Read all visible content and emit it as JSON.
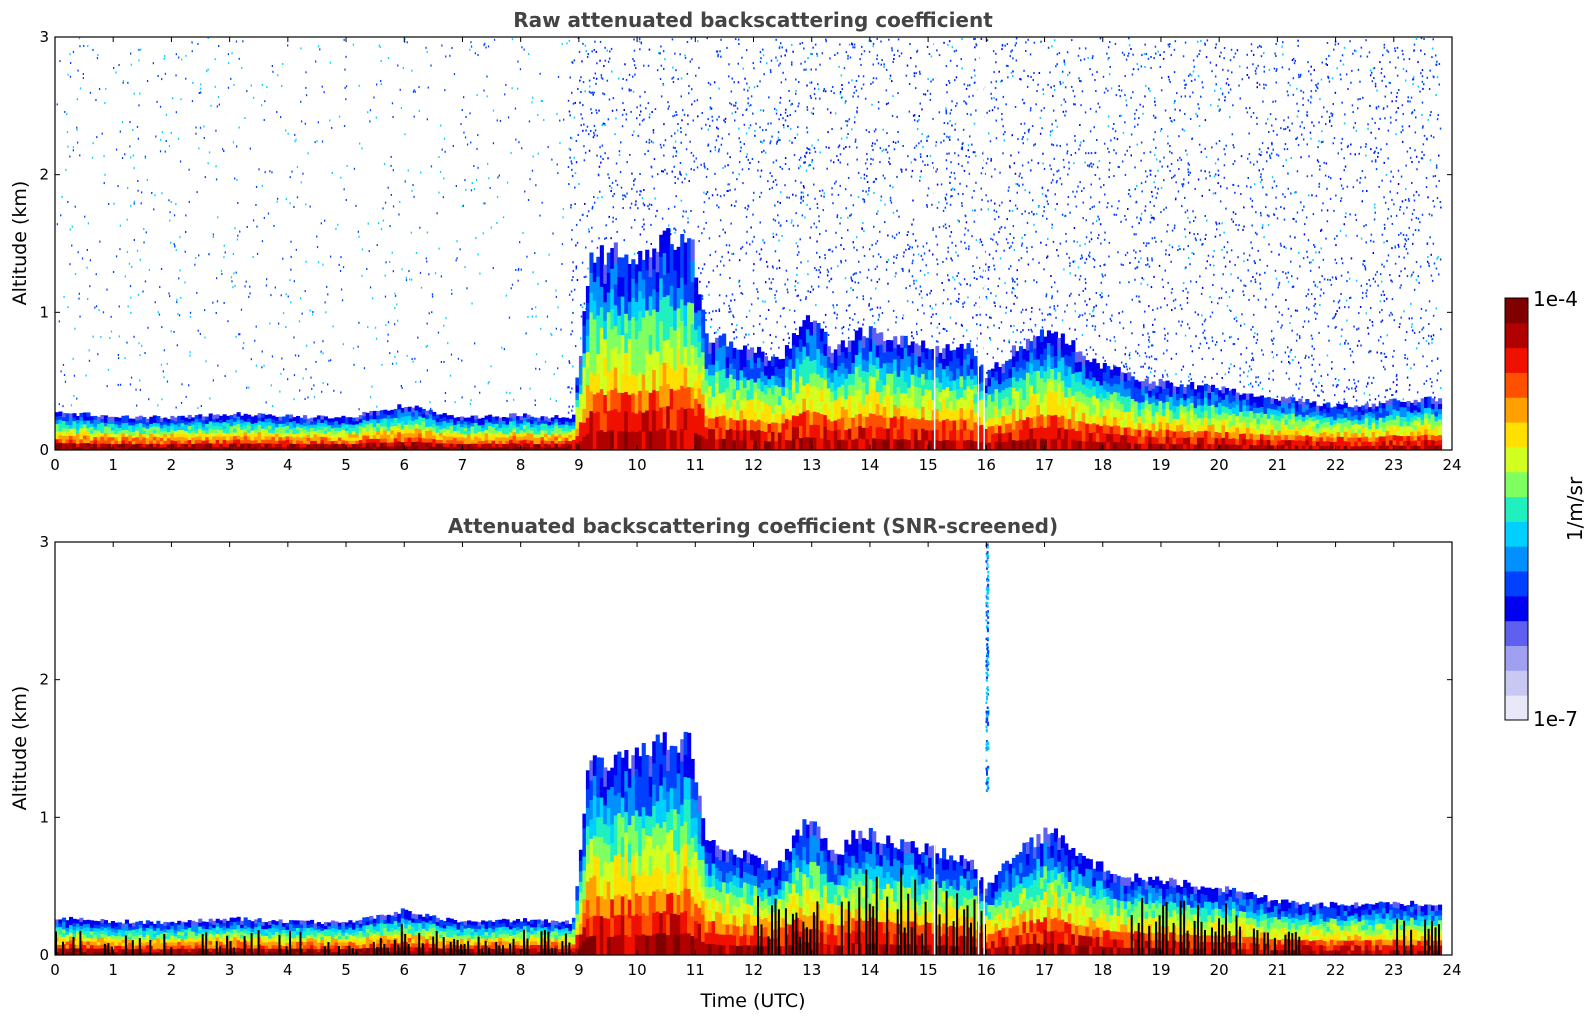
{
  "colorbar": {
    "max_label": "1e-4",
    "min_label": "1e-7",
    "unit_label": "1/m/sr",
    "colors": [
      "#e8e8f8",
      "#c8c8f2",
      "#a0a0f0",
      "#6060f0",
      "#0000f0",
      "#0040ff",
      "#0090ff",
      "#00d0ff",
      "#20f0c0",
      "#80ff60",
      "#d0ff20",
      "#ffe000",
      "#ffa000",
      "#ff5000",
      "#f01000",
      "#b00000",
      "#800000"
    ]
  },
  "chart_data": [
    {
      "type": "heatmap",
      "title": "Raw attenuated backscattering coefficient",
      "xlabel": "",
      "ylabel": "Altitude (km)",
      "xlim": [
        0,
        24
      ],
      "ylim": [
        0,
        3
      ],
      "x_ticks": [
        "0",
        "1",
        "2",
        "3",
        "4",
        "5",
        "6",
        "7",
        "8",
        "9",
        "10",
        "11",
        "12",
        "13",
        "14",
        "15",
        "16",
        "17",
        "18",
        "19",
        "20",
        "21",
        "22",
        "23",
        "24"
      ],
      "y_ticks": [
        "0",
        "1",
        "2",
        "3"
      ],
      "colorbar_range": [
        "1e-7",
        "1e-4"
      ],
      "colorbar_label": "1/m/sr",
      "layer_top_km": {
        "time_utc": [
          0,
          1,
          2,
          3,
          4,
          5,
          6,
          7,
          8,
          8.9,
          9.2,
          9.6,
          10.0,
          10.4,
          10.9,
          11.2,
          11.6,
          12.0,
          12.4,
          13.0,
          13.4,
          13.8,
          14.3,
          14.8,
          15.3,
          15.7,
          16.0,
          16.5,
          17.2,
          17.6,
          18.0,
          18.5,
          19.0,
          19.5,
          20.0,
          20.5,
          21.0,
          21.5,
          22.0,
          22.5,
          23.0,
          23.5,
          23.8
        ],
        "altitude_km": [
          0.28,
          0.25,
          0.24,
          0.27,
          0.25,
          0.24,
          0.33,
          0.24,
          0.26,
          0.24,
          1.4,
          1.5,
          1.4,
          1.55,
          1.6,
          0.85,
          0.8,
          0.75,
          0.65,
          1.0,
          0.72,
          0.9,
          0.85,
          0.8,
          0.75,
          0.78,
          0.55,
          0.75,
          0.9,
          0.72,
          0.62,
          0.55,
          0.5,
          0.48,
          0.45,
          0.42,
          0.38,
          0.36,
          0.33,
          0.33,
          0.36,
          0.38,
          0.37
        ]
      },
      "noise_above_layer": true
    },
    {
      "type": "heatmap",
      "title": "Attenuated backscattering coefficient (SNR-screened)",
      "xlabel": "Time (UTC)",
      "ylabel": "Altitude (km)",
      "xlim": [
        0,
        24
      ],
      "ylim": [
        0,
        3
      ],
      "x_ticks": [
        "0",
        "1",
        "2",
        "3",
        "4",
        "5",
        "6",
        "7",
        "8",
        "9",
        "10",
        "11",
        "12",
        "13",
        "14",
        "15",
        "16",
        "17",
        "18",
        "19",
        "20",
        "21",
        "22",
        "23",
        "24"
      ],
      "y_ticks": [
        "0",
        "1",
        "2",
        "3"
      ],
      "colorbar_range": [
        "1e-7",
        "1e-4"
      ],
      "colorbar_label": "1/m/sr",
      "layer_top_km": {
        "time_utc": [
          0,
          1,
          2,
          3,
          4,
          5,
          6,
          7,
          8,
          8.9,
          9.2,
          9.6,
          10.0,
          10.4,
          10.9,
          11.2,
          11.6,
          12.0,
          12.4,
          13.0,
          13.4,
          13.8,
          14.3,
          14.8,
          15.3,
          15.7,
          16.0,
          16.5,
          17.2,
          17.6,
          18.0,
          18.5,
          19.0,
          19.5,
          20.0,
          20.5,
          21.0,
          21.5,
          22.0,
          22.5,
          23.0,
          23.5,
          23.8
        ],
        "altitude_km": [
          0.28,
          0.25,
          0.24,
          0.27,
          0.25,
          0.24,
          0.33,
          0.24,
          0.26,
          0.24,
          1.5,
          1.4,
          1.5,
          1.55,
          1.6,
          0.85,
          0.8,
          0.7,
          0.65,
          1.05,
          0.72,
          0.92,
          0.85,
          0.8,
          0.75,
          0.7,
          0.5,
          0.75,
          0.95,
          0.72,
          0.65,
          0.58,
          0.55,
          0.52,
          0.5,
          0.45,
          0.4,
          0.38,
          0.37,
          0.38,
          0.39,
          0.38,
          0.37
        ]
      },
      "noise_above_layer": false,
      "vertical_streak": {
        "time_utc": 16.0,
        "altitude_km": [
          1.2,
          3.0
        ]
      }
    }
  ]
}
